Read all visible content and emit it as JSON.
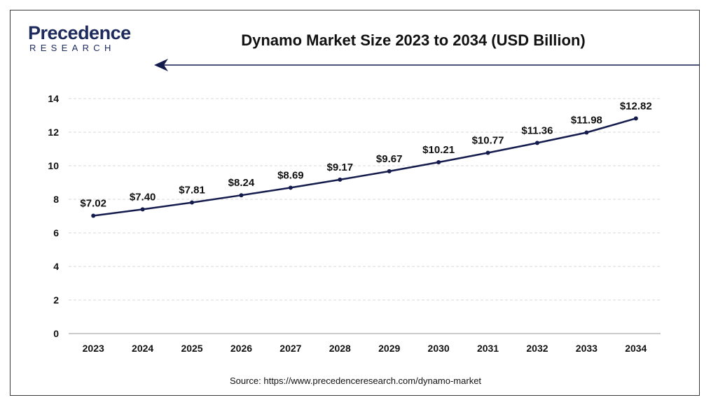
{
  "brand": {
    "name": "Precedence",
    "sub": "RESEARCH"
  },
  "colors": {
    "line": "#141b4d",
    "grid": "#d9d9d9",
    "brand": "#1d2a5c"
  },
  "chart_data": {
    "type": "line",
    "title": "Dynamo Market Size 2023 to 2034 (USD Billion)",
    "xlabel": "",
    "ylabel": "",
    "categories": [
      "2023",
      "2024",
      "2025",
      "2026",
      "2027",
      "2028",
      "2029",
      "2030",
      "2031",
      "2032",
      "2033",
      "2034"
    ],
    "series": [
      {
        "values": [
          7.02,
          7.4,
          7.81,
          8.24,
          8.69,
          9.17,
          9.67,
          10.21,
          10.77,
          11.36,
          11.98,
          12.82
        ],
        "labels": [
          "$7.02",
          "$7.40",
          "$7.81",
          "$8.24",
          "$8.69",
          "$9.17",
          "$9.67",
          "$10.21",
          "$10.77",
          "$11.36",
          "$11.98",
          "$12.82"
        ]
      }
    ],
    "yticks": [
      "0",
      "2",
      "4",
      "6",
      "8",
      "10",
      "12",
      "14"
    ],
    "ylim": [
      0,
      14
    ],
    "grid": true,
    "legend": "none"
  },
  "source": "Source: https://www.precedenceresearch.com/dynamo-market"
}
